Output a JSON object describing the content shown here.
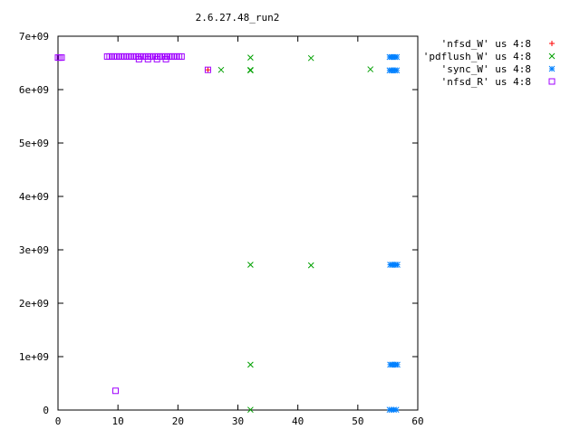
{
  "chart_data": {
    "type": "scatter",
    "title": "2.6.27.48_run2",
    "xlim": [
      0,
      60
    ],
    "ylim": [
      0,
      7000000000
    ],
    "x_ticks": [
      0,
      10,
      20,
      30,
      40,
      50,
      60
    ],
    "x_tick_labels": [
      "0",
      "10",
      "20",
      "30",
      "40",
      "50",
      "60"
    ],
    "y_ticks": [
      0,
      1000000000,
      2000000000,
      3000000000,
      4000000000,
      5000000000,
      6000000000,
      7000000000
    ],
    "y_tick_labels": [
      "0",
      "1e+09",
      "2e+09",
      "3e+09",
      "4e+09",
      "5e+09",
      "6e+09",
      "7e+09"
    ],
    "legend_position": "top-right outside",
    "series": [
      {
        "name": "'nfsd_W' us 4:8",
        "color": "#ff0000",
        "marker": "plus",
        "points": [
          [
            25.0,
            6370000000
          ]
        ]
      },
      {
        "name": "'pdflush_W' us 4:8",
        "color": "#00a000",
        "marker": "cross",
        "points": [
          [
            27.2,
            6370000000
          ],
          [
            32.1,
            6600000000
          ],
          [
            32.1,
            6360000000
          ],
          [
            32.1,
            6370000000
          ],
          [
            42.2,
            6590000000
          ],
          [
            52.1,
            6380000000
          ],
          [
            32.1,
            2720000000
          ],
          [
            42.2,
            2710000000
          ],
          [
            32.1,
            850000000
          ],
          [
            32.1,
            5000000
          ]
        ]
      },
      {
        "name": "'sync_W' us 4:8",
        "color": "#0080ff",
        "marker": "star",
        "points": [
          [
            55.3,
            6610000000
          ],
          [
            55.6,
            6610000000
          ],
          [
            55.9,
            6610000000
          ],
          [
            56.2,
            6610000000
          ],
          [
            56.5,
            6610000000
          ],
          [
            55.3,
            6360000000
          ],
          [
            55.6,
            6360000000
          ],
          [
            55.9,
            6360000000
          ],
          [
            56.2,
            6360000000
          ],
          [
            56.5,
            6360000000
          ],
          [
            55.4,
            2720000000
          ],
          [
            55.7,
            2720000000
          ],
          [
            56.0,
            2720000000
          ],
          [
            56.3,
            2720000000
          ],
          [
            56.6,
            2720000000
          ],
          [
            55.4,
            850000000
          ],
          [
            55.7,
            850000000
          ],
          [
            56.0,
            850000000
          ],
          [
            56.3,
            850000000
          ],
          [
            56.6,
            850000000
          ],
          [
            55.3,
            5000000
          ],
          [
            55.6,
            5000000
          ],
          [
            56.0,
            5000000
          ],
          [
            56.4,
            5000000
          ]
        ]
      },
      {
        "name": "'nfsd_R' us 4:8",
        "color": "#a000ff",
        "marker": "square",
        "points": [
          [
            0.0,
            6600000000
          ],
          [
            0.3,
            6600000000
          ],
          [
            0.6,
            6600000000
          ],
          [
            8.2,
            6620000000
          ],
          [
            8.6,
            6620000000
          ],
          [
            9.0,
            6620000000
          ],
          [
            9.4,
            6620000000
          ],
          [
            9.8,
            6620000000
          ],
          [
            10.2,
            6620000000
          ],
          [
            10.6,
            6620000000
          ],
          [
            11.0,
            6620000000
          ],
          [
            11.4,
            6620000000
          ],
          [
            11.8,
            6620000000
          ],
          [
            12.2,
            6620000000
          ],
          [
            12.6,
            6620000000
          ],
          [
            13.0,
            6620000000
          ],
          [
            13.4,
            6620000000
          ],
          [
            13.8,
            6620000000
          ],
          [
            14.2,
            6620000000
          ],
          [
            14.6,
            6620000000
          ],
          [
            15.0,
            6620000000
          ],
          [
            15.4,
            6620000000
          ],
          [
            15.8,
            6620000000
          ],
          [
            16.2,
            6620000000
          ],
          [
            16.6,
            6620000000
          ],
          [
            17.0,
            6620000000
          ],
          [
            17.4,
            6620000000
          ],
          [
            17.8,
            6620000000
          ],
          [
            18.2,
            6620000000
          ],
          [
            18.6,
            6620000000
          ],
          [
            19.0,
            6620000000
          ],
          [
            19.4,
            6620000000
          ],
          [
            19.8,
            6620000000
          ],
          [
            20.2,
            6620000000
          ],
          [
            20.6,
            6620000000
          ],
          [
            13.5,
            6570000000
          ],
          [
            15.0,
            6570000000
          ],
          [
            16.5,
            6570000000
          ],
          [
            18.0,
            6570000000
          ],
          [
            25.0,
            6370000000
          ],
          [
            9.6,
            360000000
          ]
        ]
      }
    ]
  }
}
